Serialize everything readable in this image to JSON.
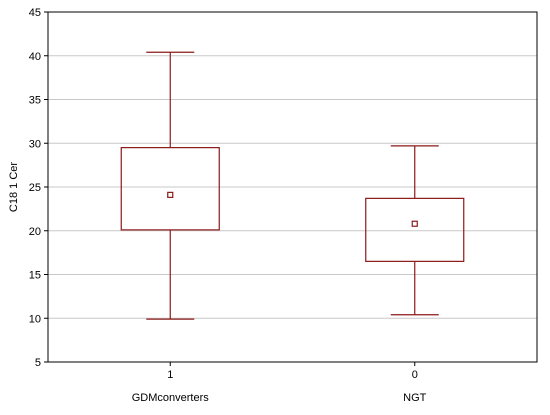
{
  "chart_data": {
    "type": "boxplot",
    "ylabel": "C18 1 Cer",
    "ylim": [
      5,
      45
    ],
    "yticks": [
      5,
      10,
      15,
      20,
      25,
      30,
      35,
      40,
      45
    ],
    "grid": true,
    "categories": [
      {
        "tick": "1",
        "label": "GDMconverters",
        "whisker_low": 9.9,
        "q1": 20.1,
        "center": 24.1,
        "q3": 29.5,
        "whisker_high": 40.4
      },
      {
        "tick": "0",
        "label": "NGT",
        "whisker_low": 10.4,
        "q1": 16.5,
        "center": 20.8,
        "q3": 23.7,
        "whisker_high": 29.7
      }
    ],
    "color": "#8b1a1a"
  }
}
